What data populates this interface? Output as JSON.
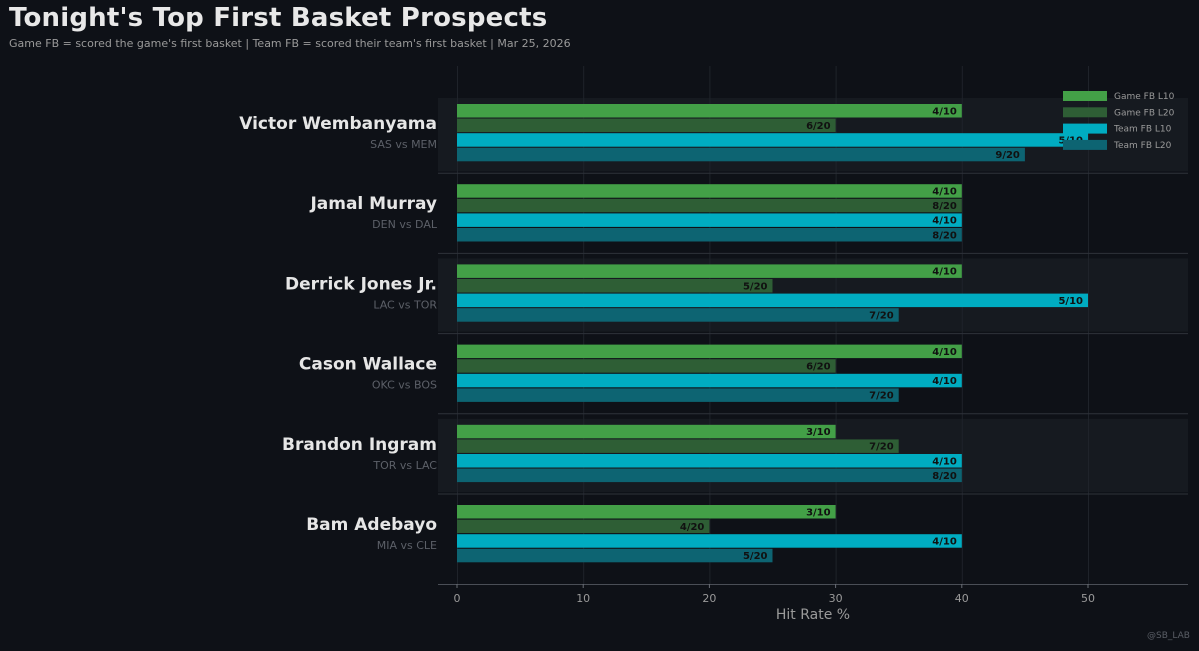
{
  "header": {
    "title": "Tonight's Top First Basket Prospects",
    "subtitle": "Game FB = scored the game's first basket  |  Team FB = scored their team's first basket  |  Mar 25, 2026",
    "watermark": "@SB_LAB"
  },
  "colors": {
    "background": "#0e1117",
    "band": "#161a20",
    "divider": "#2e323a",
    "grid": "#1f232a",
    "game_l10": "#43a047",
    "game_l20": "#2e5e35",
    "team_l10": "#00acc1",
    "team_l20": "#0d6472"
  },
  "chart_data": {
    "type": "bar",
    "orientation": "horizontal",
    "title": "Tonight's Top First Basket Prospects",
    "subtitle": "Game FB = scored the game's first basket  |  Team FB = scored their team's first basket  |  Mar 25, 2026",
    "xlabel": "Hit Rate %",
    "ylabel": "",
    "xlim": [
      -1.5,
      58
    ],
    "xticks": [
      0,
      10,
      20,
      30,
      40,
      50
    ],
    "grid": true,
    "legend_position": "top-right",
    "series": [
      {
        "key": "game_l10",
        "name": "Game FB L10"
      },
      {
        "key": "game_l20",
        "name": "Game FB L20"
      },
      {
        "key": "team_l10",
        "name": "Team FB L10"
      },
      {
        "key": "team_l20",
        "name": "Team FB L20"
      }
    ],
    "players": [
      {
        "name": "Victor Wembanyama",
        "matchup": "SAS vs MEM",
        "banded": true,
        "bars": [
          {
            "series": "game_l10",
            "value": 40,
            "label": "4/10"
          },
          {
            "series": "game_l20",
            "value": 30,
            "label": "6/20"
          },
          {
            "series": "team_l10",
            "value": 50,
            "label": "5/10"
          },
          {
            "series": "team_l20",
            "value": 45,
            "label": "9/20"
          }
        ]
      },
      {
        "name": "Jamal Murray",
        "matchup": "DEN vs DAL",
        "banded": false,
        "bars": [
          {
            "series": "game_l10",
            "value": 40,
            "label": "4/10"
          },
          {
            "series": "game_l20",
            "value": 40,
            "label": "8/20"
          },
          {
            "series": "team_l10",
            "value": 40,
            "label": "4/10"
          },
          {
            "series": "team_l20",
            "value": 40,
            "label": "8/20"
          }
        ]
      },
      {
        "name": "Derrick Jones Jr.",
        "matchup": "LAC vs TOR",
        "banded": true,
        "bars": [
          {
            "series": "game_l10",
            "value": 40,
            "label": "4/10"
          },
          {
            "series": "game_l20",
            "value": 25,
            "label": "5/20"
          },
          {
            "series": "team_l10",
            "value": 50,
            "label": "5/10"
          },
          {
            "series": "team_l20",
            "value": 35,
            "label": "7/20"
          }
        ]
      },
      {
        "name": "Cason Wallace",
        "matchup": "OKC vs BOS",
        "banded": false,
        "bars": [
          {
            "series": "game_l10",
            "value": 40,
            "label": "4/10"
          },
          {
            "series": "game_l20",
            "value": 30,
            "label": "6/20"
          },
          {
            "series": "team_l10",
            "value": 40,
            "label": "4/10"
          },
          {
            "series": "team_l20",
            "value": 35,
            "label": "7/20"
          }
        ]
      },
      {
        "name": "Brandon Ingram",
        "matchup": "TOR vs LAC",
        "banded": true,
        "bars": [
          {
            "series": "game_l10",
            "value": 30,
            "label": "3/10"
          },
          {
            "series": "game_l20",
            "value": 35,
            "label": "7/20"
          },
          {
            "series": "team_l10",
            "value": 40,
            "label": "4/10"
          },
          {
            "series": "team_l20",
            "value": 40,
            "label": "8/20"
          }
        ]
      },
      {
        "name": "Bam Adebayo",
        "matchup": "MIA vs CLE",
        "banded": false,
        "bars": [
          {
            "series": "game_l10",
            "value": 30,
            "label": "3/10"
          },
          {
            "series": "game_l20",
            "value": 20,
            "label": "4/20"
          },
          {
            "series": "team_l10",
            "value": 40,
            "label": "4/10"
          },
          {
            "series": "team_l20",
            "value": 25,
            "label": "5/20"
          }
        ]
      }
    ]
  }
}
